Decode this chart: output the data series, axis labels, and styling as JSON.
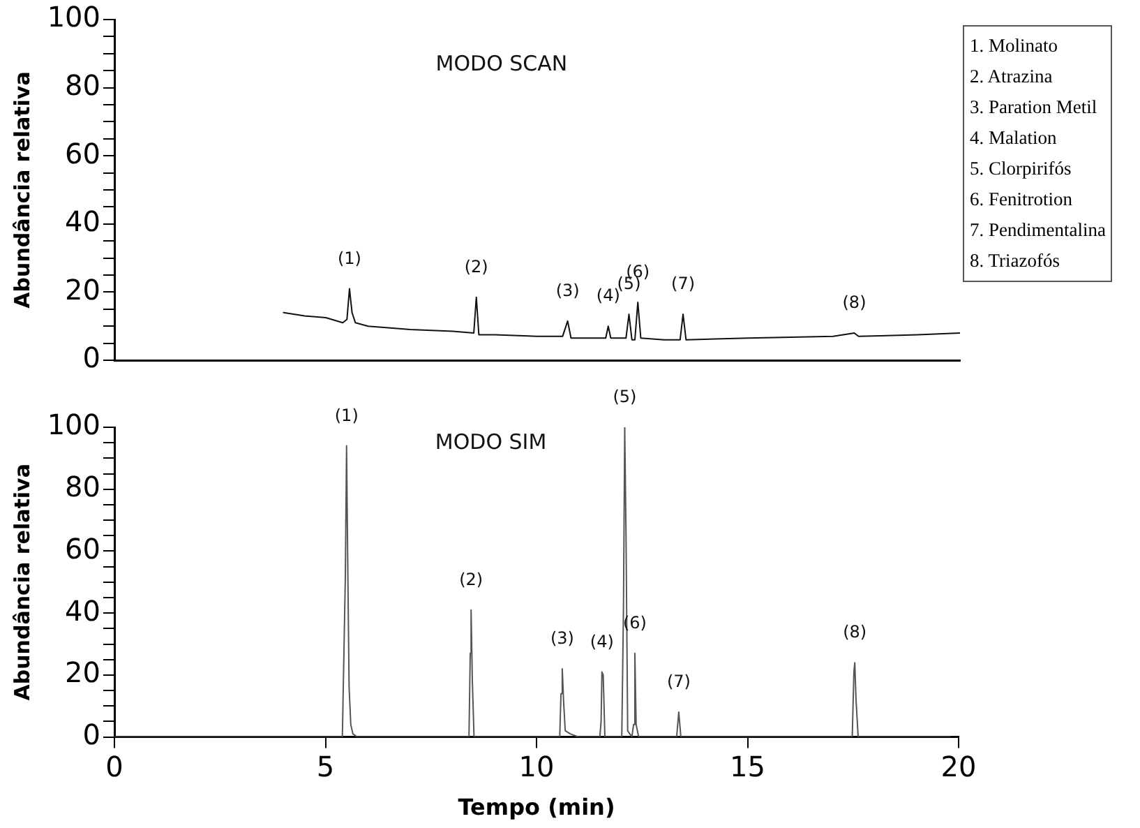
{
  "chart_data": [
    {
      "type": "line",
      "title": "MODO SCAN",
      "ylabel": "Abundância relativa",
      "color": "#111111",
      "tick_labels": "y",
      "xlim": [
        0,
        20
      ],
      "ylim": [
        0,
        100
      ],
      "yticks": [
        0,
        {
          "value": 5,
          "label": null
        },
        {
          "value": 10,
          "label": null
        },
        {
          "value": 15,
          "label": null
        },
        20,
        {
          "value": 25,
          "label": null
        },
        {
          "value": 30,
          "label": null
        },
        {
          "value": 35,
          "label": null
        },
        40,
        {
          "value": 45,
          "label": null
        },
        {
          "value": 50,
          "label": null
        },
        {
          "value": 55,
          "label": null
        },
        60,
        {
          "value": 65,
          "label": null
        },
        {
          "value": 70,
          "label": null
        },
        {
          "value": 75,
          "label": null
        },
        80,
        {
          "value": 85,
          "label": null
        },
        {
          "value": 90,
          "label": null
        },
        {
          "value": 95,
          "label": null
        },
        100
      ],
      "x": [
        4,
        4.5,
        5,
        5.4,
        5.5,
        5.56,
        5.62,
        5.7,
        6,
        7,
        8,
        8.5,
        8.56,
        8.62,
        9,
        10,
        10.6,
        10.72,
        10.8,
        11.5,
        11.62,
        11.68,
        11.74,
        12.1,
        12.17,
        12.24,
        12.31,
        12.38,
        12.45,
        13,
        13.38,
        13.45,
        13.52,
        15,
        17,
        17.5,
        17.6,
        19,
        20
      ],
      "values": [
        14,
        13,
        12.5,
        11,
        12,
        21,
        14,
        11,
        10,
        9,
        8.5,
        8,
        18.5,
        7.5,
        7.5,
        7,
        7,
        11.5,
        6.5,
        6.5,
        6.5,
        10,
        6.5,
        6.5,
        13.5,
        6,
        6,
        17,
        6.5,
        6,
        6,
        13.5,
        6,
        6.5,
        7,
        8,
        7,
        7.5,
        8
      ],
      "annotations": [
        {
          "text": "(1)",
          "x": 5.56,
          "y": 21
        },
        {
          "text": "(2)",
          "x": 8.56,
          "y": 18.5
        },
        {
          "text": "(3)",
          "x": 10.72,
          "y": 11.5
        },
        {
          "text": "(4)",
          "x": 11.68,
          "y": 10
        },
        {
          "text": "(5)",
          "x": 12.17,
          "y": 13.5
        },
        {
          "text": "(6)",
          "x": 12.38,
          "y": 17
        },
        {
          "text": "(7)",
          "x": 13.45,
          "y": 13.5
        },
        {
          "text": "(8)",
          "x": 17.5,
          "y": 8
        },
        "1. Molinato",
        "2. Atrazina",
        "3. Paration Metil",
        "4. Malation",
        "5. Clorpirifós",
        "6. Fenitrotion",
        "7. Pendimentalina",
        "8. Triazofós"
      ]
    },
    {
      "type": "line",
      "title": "MODO SIM",
      "ylabel": "Abundância relativa",
      "xlabel": "Tempo (min)",
      "color": "#555555",
      "xlim": [
        0,
        20
      ],
      "xticks": [
        0,
        5,
        10,
        15,
        20
      ],
      "ylim": [
        0,
        100
      ],
      "yticks": [
        0,
        {
          "value": 5,
          "label": null
        },
        {
          "value": 10,
          "label": null
        },
        {
          "value": 15,
          "label": null
        },
        20,
        {
          "value": 25,
          "label": null
        },
        {
          "value": 30,
          "label": null
        },
        {
          "value": 35,
          "label": null
        },
        40,
        {
          "value": 45,
          "label": null
        },
        {
          "value": 50,
          "label": null
        },
        {
          "value": 55,
          "label": null
        },
        60,
        {
          "value": 65,
          "label": null
        },
        {
          "value": 70,
          "label": null
        },
        {
          "value": 75,
          "label": null
        },
        80,
        {
          "value": 85,
          "label": null
        },
        {
          "value": 90,
          "label": null
        },
        {
          "value": 95,
          "label": null
        },
        100
      ],
      "x": [
        0,
        5.4,
        5.47,
        5.5,
        5.53,
        5.56,
        5.6,
        5.65,
        5.75,
        6,
        8.4,
        8.43,
        8.45,
        8.48,
        8.52,
        8.58,
        10.55,
        10.58,
        10.61,
        10.64,
        10.68,
        10.8,
        11.0,
        11.5,
        11.53,
        11.55,
        11.58,
        11.62,
        12.02,
        12.06,
        12.09,
        12.12,
        12.16,
        12.26,
        12.3,
        12.33,
        12.36,
        12.42,
        13.32,
        13.37,
        13.42,
        17.48,
        17.52,
        17.54,
        17.57,
        17.62,
        19.8
      ],
      "values": [
        0,
        0,
        51,
        94,
        53,
        16,
        4,
        1,
        0,
        0,
        0,
        27,
        41,
        18,
        0,
        0,
        0,
        14,
        22,
        12,
        2,
        1,
        0,
        0,
        5,
        21,
        20,
        0,
        0,
        41,
        100,
        66,
        2,
        0,
        4,
        27,
        4,
        0,
        0,
        8,
        0,
        0,
        21,
        24,
        12,
        0,
        0
      ],
      "annotations": [
        {
          "text": "(1)",
          "x": 5.5,
          "y": 94
        },
        {
          "text": "(2)",
          "x": 8.45,
          "y": 41
        },
        {
          "text": "(3)",
          "x": 10.61,
          "y": 22
        },
        {
          "text": "(4)",
          "x": 11.55,
          "y": 21
        },
        {
          "text": "(5)",
          "x": 12.09,
          "y": 100
        },
        {
          "text": "(6)",
          "x": 12.33,
          "y": 27
        },
        {
          "text": "(7)",
          "x": 13.37,
          "y": 8
        },
        {
          "text": "(8)",
          "x": 17.54,
          "y": 24
        }
      ]
    }
  ]
}
